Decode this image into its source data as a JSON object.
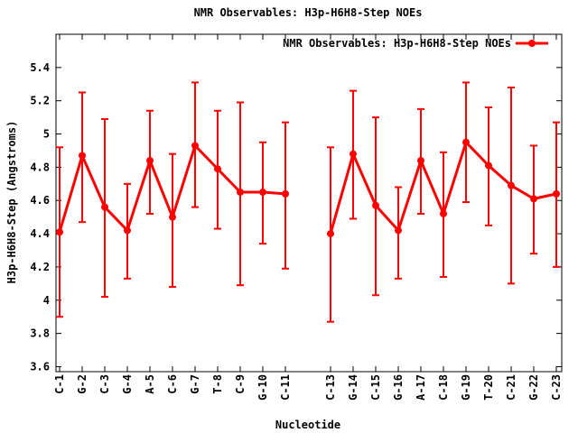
{
  "page": {
    "background": "#ffffff"
  },
  "header": {
    "title": "NMR Observables: H3p-H6H8-Step NOEs"
  },
  "colors": {
    "series": "#ff0000",
    "text": "#000000",
    "axis": "#000000",
    "background": "#ffffff"
  },
  "chart_data": {
    "type": "line",
    "title": "NMR Observables: H3p-H6H8-Step NOEs",
    "xlabel": "Nucleotide",
    "ylabel": "H3p-H6H8-Step (Angstroms)",
    "legend_position": "top-right-inside",
    "grid": false,
    "marker": "filled-circle",
    "error_bars": true,
    "xlim": [
      0.84,
      23.24
    ],
    "ylim": [
      3.57,
      5.6
    ],
    "yticks": [
      3.6,
      3.8,
      4,
      4.2,
      4.4,
      4.6,
      4.8,
      5,
      5.2,
      5.4
    ],
    "ytick_labels": [
      "3.6",
      "3.8",
      "4",
      "4.2",
      "4.4",
      "4.6",
      "4.8",
      "5",
      "5.2",
      "5.4"
    ],
    "series": [
      {
        "name": "NMR Observables: H3p-H6H8-Step NOEs",
        "color": "#ff0000",
        "points": [
          {
            "x": 1,
            "label": "C-1",
            "y": 4.41,
            "ylow": 3.9,
            "yhigh": 4.92
          },
          {
            "x": 2,
            "label": "G-2",
            "y": 4.87,
            "ylow": 4.47,
            "yhigh": 5.25
          },
          {
            "x": 3,
            "label": "C-3",
            "y": 4.56,
            "ylow": 4.02,
            "yhigh": 5.09
          },
          {
            "x": 4,
            "label": "G-4",
            "y": 4.42,
            "ylow": 4.13,
            "yhigh": 4.7
          },
          {
            "x": 5,
            "label": "A-5",
            "y": 4.84,
            "ylow": 4.52,
            "yhigh": 5.14
          },
          {
            "x": 6,
            "label": "C-6",
            "y": 4.5,
            "ylow": 4.08,
            "yhigh": 4.88
          },
          {
            "x": 7,
            "label": "G-7",
            "y": 4.93,
            "ylow": 4.56,
            "yhigh": 5.31
          },
          {
            "x": 8,
            "label": "T-8",
            "y": 4.79,
            "ylow": 4.43,
            "yhigh": 5.14
          },
          {
            "x": 9,
            "label": "C-9",
            "y": 4.65,
            "ylow": 4.09,
            "yhigh": 5.19
          },
          {
            "x": 10,
            "label": "G-10",
            "y": 4.65,
            "ylow": 4.34,
            "yhigh": 4.95
          },
          {
            "x": 11,
            "label": "C-11",
            "y": 4.64,
            "ylow": 4.19,
            "yhigh": 5.07
          },
          {
            "x": 13,
            "label": "C-13",
            "y": 4.4,
            "ylow": 3.87,
            "yhigh": 4.92
          },
          {
            "x": 14,
            "label": "G-14",
            "y": 4.88,
            "ylow": 4.49,
            "yhigh": 5.26
          },
          {
            "x": 15,
            "label": "C-15",
            "y": 4.57,
            "ylow": 4.03,
            "yhigh": 5.1
          },
          {
            "x": 16,
            "label": "G-16",
            "y": 4.42,
            "ylow": 4.13,
            "yhigh": 4.68
          },
          {
            "x": 17,
            "label": "A-17",
            "y": 4.84,
            "ylow": 4.52,
            "yhigh": 5.15
          },
          {
            "x": 18,
            "label": "C-18",
            "y": 4.52,
            "ylow": 4.14,
            "yhigh": 4.89
          },
          {
            "x": 19,
            "label": "G-19",
            "y": 4.95,
            "ylow": 4.59,
            "yhigh": 5.31
          },
          {
            "x": 20,
            "label": "T-20",
            "y": 4.81,
            "ylow": 4.45,
            "yhigh": 5.16
          },
          {
            "x": 21,
            "label": "C-21",
            "y": 4.69,
            "ylow": 4.1,
            "yhigh": 5.28
          },
          {
            "x": 22,
            "label": "G-22",
            "y": 4.61,
            "ylow": 4.28,
            "yhigh": 4.93
          },
          {
            "x": 23,
            "label": "C-23",
            "y": 4.64,
            "ylow": 4.2,
            "yhigh": 5.07
          }
        ]
      }
    ]
  }
}
